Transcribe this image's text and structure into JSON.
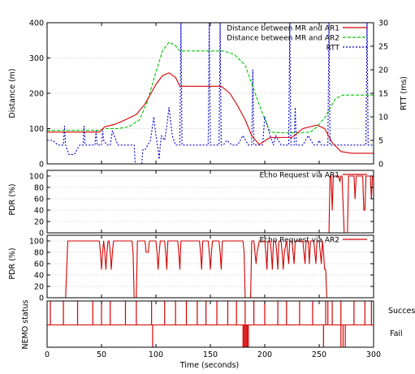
{
  "figure": {
    "xlabel": "Time (seconds)",
    "xticks": [
      "0",
      "50",
      "100",
      "150",
      "200",
      "250",
      "300"
    ],
    "nemo_status_labels": [
      "Succes",
      "Fail"
    ]
  },
  "colors": {
    "ar1": "#d40000",
    "ar2": "#00c400",
    "rtt": "#0000c8",
    "grid": "#9a9a9a"
  },
  "chart_data": [
    {
      "type": "line",
      "panel": "distance_rtt",
      "xlim": [
        0,
        300
      ],
      "ylabel": "Distance (m)",
      "ylim": [
        0,
        400
      ],
      "yticks": [
        "0",
        "100",
        "200",
        "300",
        "400"
      ],
      "y2label": "RTT (ms)",
      "y2lim": [
        0,
        30
      ],
      "y2ticks": [
        "0",
        "5",
        "10",
        "15",
        "20",
        "25",
        "30"
      ],
      "grid": true,
      "legend_position": "top-right",
      "series": [
        {
          "name": "Distance between MR and AR1",
          "axis": "left",
          "x": [
            0,
            48,
            53,
            62,
            72,
            82,
            90,
            100,
            106,
            112,
            118,
            122,
            130,
            150,
            160,
            168,
            175,
            182,
            188,
            195,
            205,
            218,
            225,
            235,
            248,
            255,
            262,
            270,
            280,
            290,
            300
          ],
          "y": [
            90,
            90,
            105,
            112,
            125,
            140,
            170,
            225,
            250,
            258,
            245,
            220,
            220,
            220,
            220,
            200,
            165,
            125,
            80,
            55,
            75,
            75,
            75,
            100,
            110,
            100,
            60,
            35,
            30,
            30,
            30
          ]
        },
        {
          "name": "Distance between MR and AR2",
          "axis": "left",
          "x": [
            0,
            48,
            53,
            65,
            75,
            85,
            92,
            100,
            106,
            112,
            118,
            122,
            130,
            150,
            162,
            172,
            182,
            190,
            197,
            205,
            220,
            232,
            242,
            248,
            255,
            265,
            272,
            278,
            288,
            300
          ],
          "y": [
            95,
            95,
            100,
            100,
            105,
            125,
            175,
            260,
            320,
            345,
            335,
            320,
            320,
            320,
            320,
            310,
            280,
            210,
            150,
            90,
            88,
            88,
            90,
            105,
            130,
            185,
            195,
            195,
            195,
            195
          ]
        },
        {
          "name": "RTT",
          "axis": "right",
          "x": [
            0,
            5,
            10,
            15,
            16,
            17,
            20,
            25,
            30,
            33,
            34,
            35,
            40,
            44,
            45,
            46,
            50,
            51,
            52,
            55,
            58,
            60,
            65,
            70,
            73,
            75,
            78,
            80,
            81,
            85,
            87,
            88,
            90,
            95,
            98,
            100,
            102,
            103,
            104,
            105,
            108,
            110,
            112,
            115,
            118,
            121,
            122,
            123,
            124,
            125,
            128,
            130,
            135,
            138,
            140,
            145,
            147,
            148,
            149,
            150,
            152,
            155,
            158,
            159,
            160,
            162,
            165,
            170,
            175,
            180,
            185,
            188,
            189,
            190,
            192,
            195,
            198,
            200,
            205,
            208,
            210,
            215,
            220,
            222,
            223,
            224,
            225,
            227,
            228,
            229,
            230,
            235,
            240,
            245,
            248,
            250,
            252,
            255,
            258,
            259,
            260,
            265,
            270,
            272,
            274,
            275,
            278,
            280,
            282,
            285,
            287,
            290,
            293,
            294,
            295,
            298,
            300
          ],
          "y": [
            5,
            5,
            4,
            4,
            8,
            4,
            2,
            2,
            4,
            4,
            8,
            4,
            4,
            4,
            7,
            4,
            4,
            7,
            5,
            4,
            4,
            7,
            4,
            4,
            4,
            4,
            4,
            4,
            0,
            0,
            0,
            3,
            3,
            5,
            10,
            6,
            3,
            1,
            4,
            6,
            5,
            8,
            12,
            6,
            4,
            4,
            4,
            35,
            4,
            4,
            4,
            4,
            4,
            4,
            4,
            4,
            4,
            4,
            35,
            4,
            4,
            4,
            4,
            35,
            4,
            4,
            5,
            4,
            4,
            6,
            4,
            4,
            20,
            4,
            4,
            4,
            4,
            10,
            6,
            4,
            6,
            4,
            4,
            4,
            35,
            4,
            4,
            4,
            12,
            4,
            4,
            4,
            6,
            4,
            4,
            5,
            4,
            4,
            4,
            30,
            4,
            4,
            4,
            4,
            4,
            4,
            4,
            4,
            4,
            4,
            4,
            4,
            4,
            35,
            4,
            4,
            4
          ]
        }
      ]
    },
    {
      "type": "line",
      "panel": "pdr_ar1",
      "xlim": [
        0,
        300
      ],
      "ylabel": "PDR (%)",
      "ylim": [
        0,
        110
      ],
      "yticks": [
        "0",
        "20",
        "40",
        "60",
        "80",
        "100"
      ],
      "grid": true,
      "legend_position": "top-right",
      "series": [
        {
          "name": "Echo Request via AR1",
          "x": [
            0,
            258,
            259,
            260,
            261,
            262,
            263,
            264,
            265,
            266,
            268,
            269,
            270,
            271,
            273,
            274,
            275,
            276,
            277,
            278,
            282,
            283,
            284,
            285,
            286,
            287,
            290,
            291,
            292,
            293,
            295,
            296,
            297,
            298,
            299,
            300
          ],
          "y": [
            0,
            0,
            0,
            100,
            100,
            40,
            100,
            100,
            100,
            100,
            100,
            90,
            100,
            100,
            0,
            0,
            0,
            0,
            100,
            100,
            100,
            60,
            100,
            100,
            100,
            100,
            100,
            40,
            40,
            100,
            100,
            100,
            100,
            60,
            100,
            100
          ]
        }
      ]
    },
    {
      "type": "line",
      "panel": "pdr_ar2",
      "xlim": [
        0,
        300
      ],
      "ylabel": "PDR (%)",
      "ylim": [
        0,
        110
      ],
      "yticks": [
        "0",
        "20",
        "40",
        "60",
        "80",
        "100"
      ],
      "grid": true,
      "legend_position": "top-right",
      "series": [
        {
          "name": "Echo Request via AR2",
          "x": [
            0,
            16,
            17,
            19,
            20,
            48,
            49,
            50,
            51,
            52,
            53,
            54,
            55,
            56,
            57,
            58,
            59,
            60,
            61,
            62,
            78,
            79,
            80,
            81,
            82,
            83,
            90,
            91,
            93,
            94,
            100,
            101,
            102,
            103,
            104,
            105,
            108,
            109,
            110,
            111,
            112,
            120,
            121,
            122,
            123,
            140,
            141,
            142,
            143,
            148,
            149,
            150,
            151,
            152,
            153,
            158,
            159,
            160,
            161,
            162,
            180,
            181,
            182,
            183,
            184,
            185,
            186,
            187,
            188,
            190,
            191,
            192,
            193,
            195,
            196,
            197,
            200,
            201,
            202,
            203,
            205,
            206,
            207,
            208,
            210,
            211,
            212,
            213,
            215,
            216,
            217,
            218,
            220,
            221,
            222,
            223,
            225,
            226,
            227,
            228,
            230,
            235,
            236,
            237,
            238,
            240,
            241,
            242,
            245,
            246,
            247,
            248,
            250,
            251,
            252,
            253,
            254,
            255,
            256,
            257,
            258,
            300
          ],
          "y": [
            0,
            0,
            0,
            100,
            100,
            100,
            80,
            50,
            80,
            100,
            80,
            50,
            80,
            100,
            100,
            80,
            50,
            80,
            100,
            100,
            100,
            80,
            0,
            0,
            0,
            100,
            100,
            80,
            80,
            100,
            100,
            80,
            50,
            80,
            100,
            100,
            100,
            80,
            50,
            100,
            100,
            100,
            80,
            50,
            100,
            100,
            80,
            50,
            100,
            100,
            80,
            50,
            80,
            100,
            100,
            100,
            80,
            50,
            100,
            100,
            100,
            80,
            0,
            0,
            0,
            0,
            0,
            0,
            100,
            100,
            80,
            60,
            80,
            100,
            100,
            100,
            100,
            80,
            50,
            100,
            100,
            80,
            50,
            100,
            100,
            80,
            50,
            100,
            100,
            80,
            50,
            80,
            100,
            80,
            60,
            100,
            100,
            80,
            60,
            100,
            100,
            100,
            80,
            60,
            100,
            100,
            60,
            100,
            100,
            80,
            60,
            100,
            100,
            80,
            60,
            100,
            80,
            50,
            50,
            0,
            0,
            0
          ]
        }
      ]
    },
    {
      "type": "event",
      "panel": "nemo_status",
      "ylabel": "NEMO status",
      "xlim": [
        0,
        300
      ],
      "categories": [
        "Succes",
        "Fail"
      ],
      "success_events": [
        3,
        15,
        28,
        42,
        50,
        58,
        72,
        82,
        96,
        108,
        118,
        128,
        138,
        146,
        156,
        166,
        174,
        182,
        190,
        200,
        212,
        220,
        232,
        244,
        256,
        258,
        262,
        270,
        282,
        292,
        298
      ],
      "fail_events": [
        97,
        180,
        181,
        182,
        183,
        184,
        185,
        254,
        270,
        272,
        274
      ]
    }
  ]
}
